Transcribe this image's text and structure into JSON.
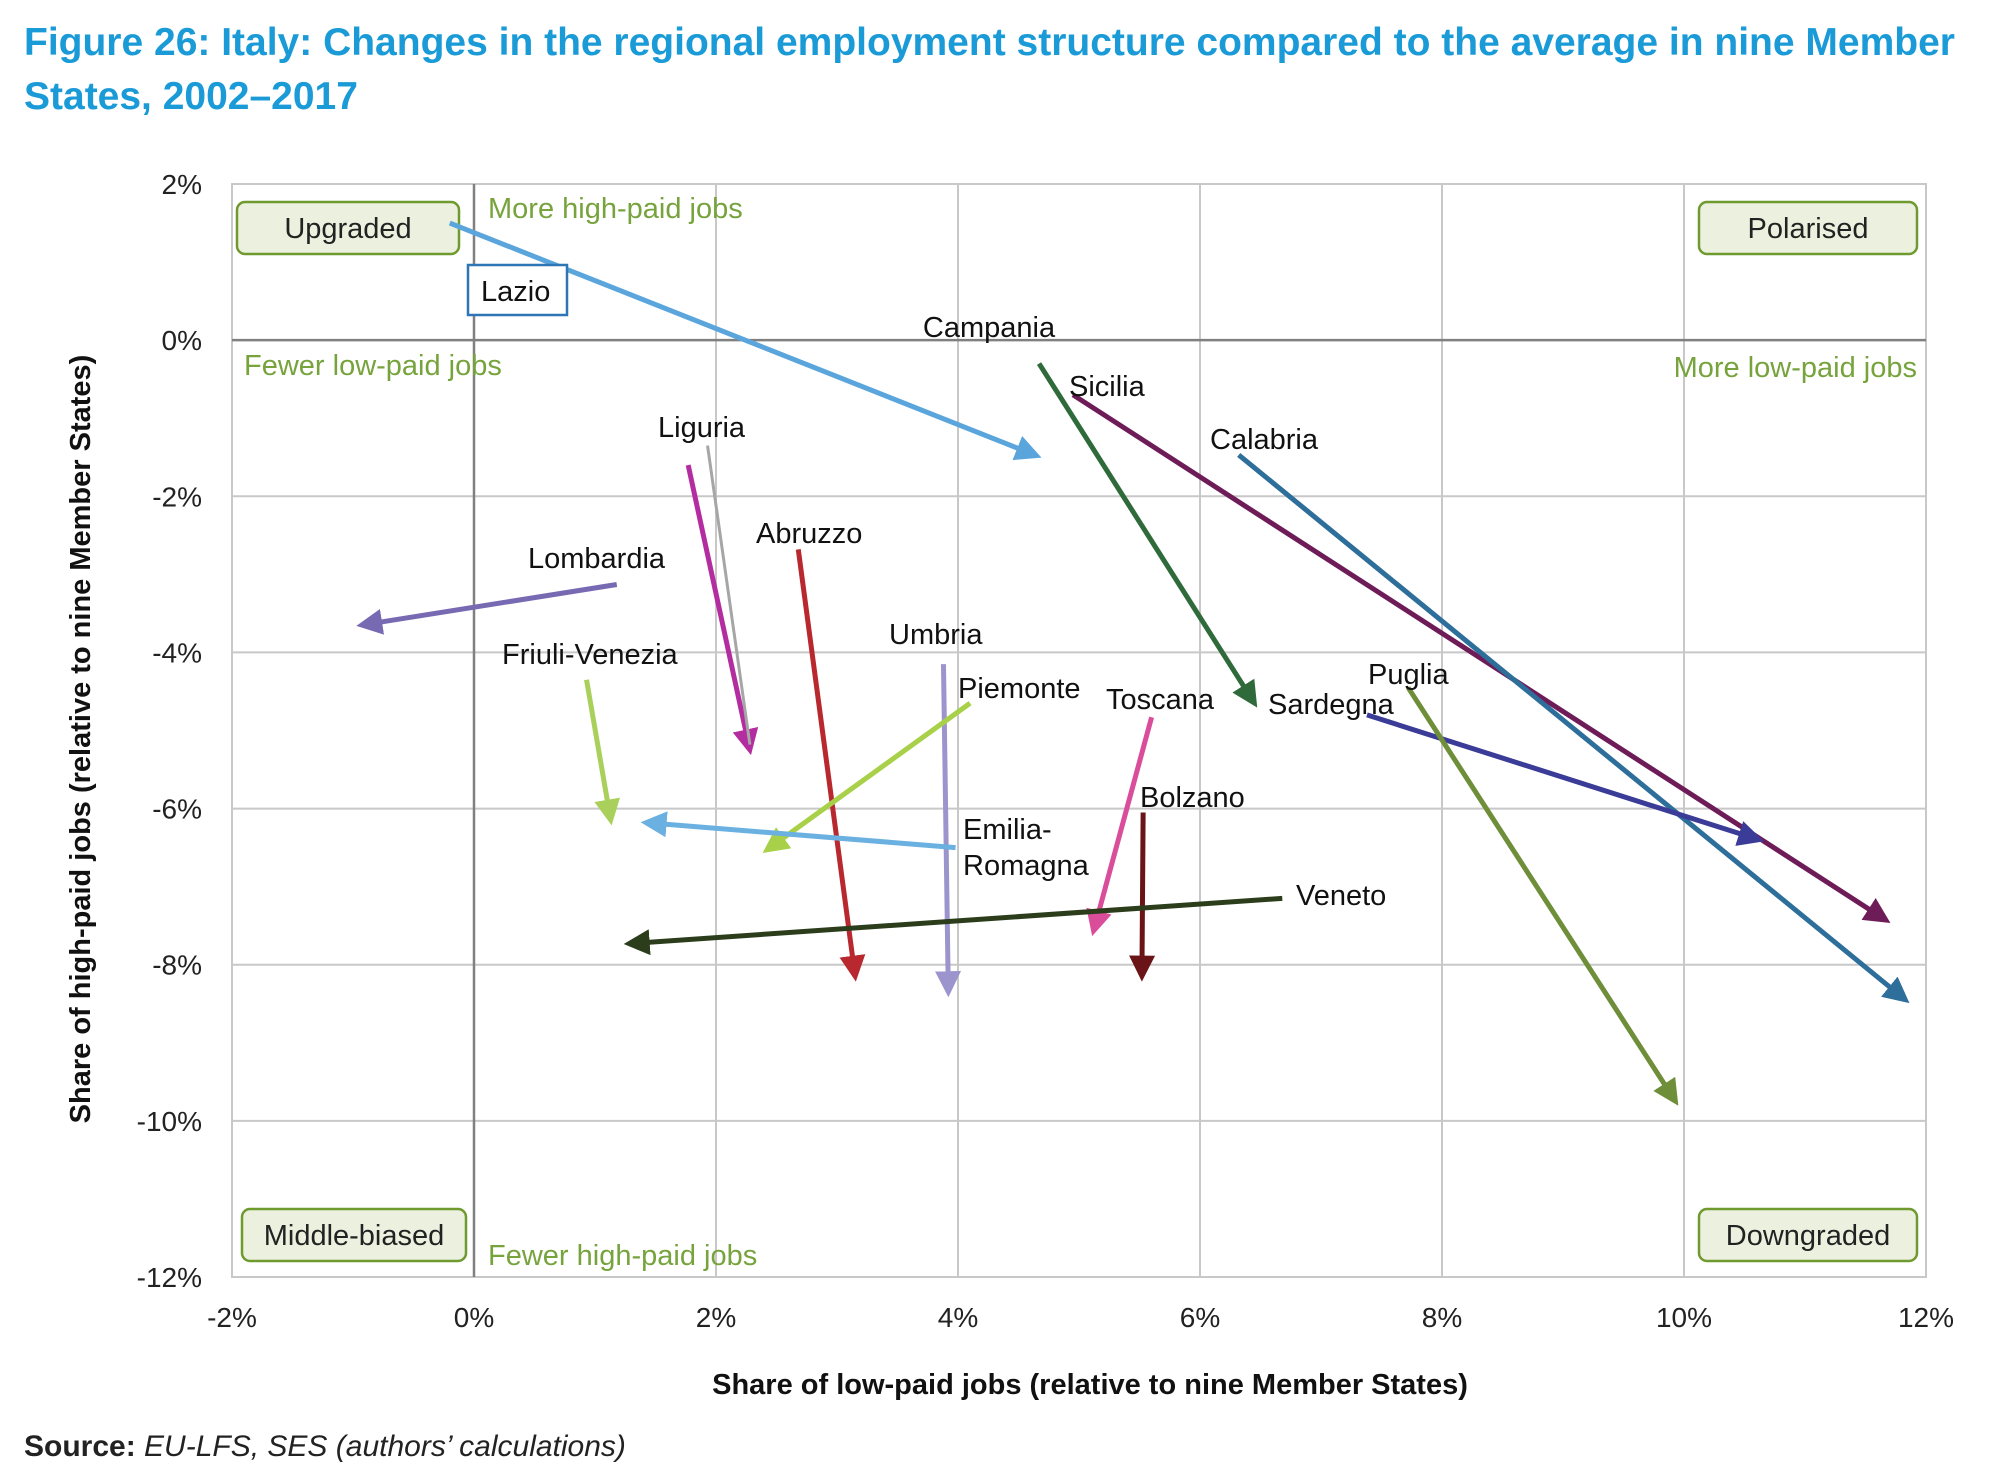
{
  "figure": {
    "title": "Figure 26: Italy: Changes in the regional employment structure compared to the average in nine Member States, 2002–2017",
    "source_label": "Source:",
    "source_text": "EU-LFS, SES (authors’ calculations)"
  },
  "chart_data": {
    "type": "scatter",
    "subtype": "arrow-vectors",
    "xlabel": "Share of low-paid jobs (relative to nine Member States)",
    "ylabel": "Share of high-paid jobs (relative to nine Member States)",
    "xlim": [
      -0.02,
      0.12
    ],
    "ylim": [
      -0.12,
      0.02
    ],
    "x_ticks": [
      -0.02,
      0,
      0.02,
      0.04,
      0.06,
      0.08,
      0.1,
      0.12
    ],
    "x_tick_labels": [
      "-2%",
      "0%",
      "2%",
      "4%",
      "6%",
      "8%",
      "10%",
      "12%"
    ],
    "y_ticks": [
      0.02,
      0,
      -0.02,
      -0.04,
      -0.06,
      -0.08,
      -0.1,
      -0.12
    ],
    "y_tick_labels": [
      "2%",
      "0%",
      "-2%",
      "-4%",
      "-6%",
      "-8%",
      "-10%",
      "-12%"
    ],
    "grid": true,
    "quadrant_boxes": [
      {
        "text": "Upgraded",
        "position": "top-left"
      },
      {
        "text": "Polarised",
        "position": "top-right"
      },
      {
        "text": "Middle-biased",
        "position": "bottom-left"
      },
      {
        "text": "Downgraded",
        "position": "bottom-right"
      }
    ],
    "axis_annotations": [
      {
        "text": "More high-paid jobs",
        "position": "top"
      },
      {
        "text": "Fewer low-paid jobs",
        "position": "left"
      },
      {
        "text": "More low-paid jobs",
        "position": "right"
      },
      {
        "text": "Fewer high-paid jobs",
        "position": "bottom"
      }
    ],
    "colors": {
      "title": "#1a9bd7",
      "annotation": "#77a33d",
      "box_fill": "#ebf1de",
      "box_border": "#6e9a30",
      "grid": "#c8c8c8",
      "axis": "#808080"
    },
    "series": [
      {
        "name": "Lazio",
        "x0": -0.002,
        "y0": 0.015,
        "x1": 0.0465,
        "y1": -0.0148,
        "color": "#5aa5dc",
        "label_boxed": true
      },
      {
        "name": "Campania",
        "x0": 0.0467,
        "y0": -0.003,
        "x1": 0.0645,
        "y1": -0.0465,
        "color": "#2f6b3a"
      },
      {
        "name": "Sicilia",
        "x0": 0.0495,
        "y0": -0.007,
        "x1": 0.1167,
        "y1": -0.0743,
        "color": "#6e1c58"
      },
      {
        "name": "Calabria",
        "x0": 0.0632,
        "y0": -0.0147,
        "x1": 0.1183,
        "y1": -0.0845,
        "color": "#2d6e9a"
      },
      {
        "name": "Liguria",
        "x0": 0.0177,
        "y0": -0.016,
        "x1": 0.0228,
        "y1": -0.0525,
        "color": "#b42da0"
      },
      {
        "name": "Liguria (grey)",
        "x0": 0.0193,
        "y0": -0.0135,
        "x1": 0.0228,
        "y1": -0.0518,
        "color": "#a6a6a6"
      },
      {
        "name": "Abruzzo",
        "x0": 0.0268,
        "y0": -0.0268,
        "x1": 0.0315,
        "y1": -0.0815,
        "color": "#b8282e"
      },
      {
        "name": "Lombardia",
        "x0": 0.0118,
        "y0": -0.0313,
        "x1": -0.0093,
        "y1": -0.0365,
        "color": "#7769b2"
      },
      {
        "name": "Umbria",
        "x0": 0.0388,
        "y0": -0.0415,
        "x1": 0.0392,
        "y1": -0.0835,
        "color": "#9c94cc"
      },
      {
        "name": "Friuli-Venezia",
        "x0": 0.0093,
        "y0": -0.0435,
        "x1": 0.0113,
        "y1": -0.0615,
        "color": "#a9d05a"
      },
      {
        "name": "Piemonte",
        "x0": 0.041,
        "y0": -0.0465,
        "x1": 0.0242,
        "y1": -0.0653,
        "color": "#a8d048"
      },
      {
        "name": "Toscana",
        "x0": 0.056,
        "y0": -0.0483,
        "x1": 0.0512,
        "y1": -0.0757,
        "color": "#d94d9b"
      },
      {
        "name": "Sardegna",
        "x0": 0.0738,
        "y0": -0.048,
        "x1": 0.1062,
        "y1": -0.064,
        "color": "#3b3b98"
      },
      {
        "name": "Puglia",
        "x0": 0.0772,
        "y0": -0.0445,
        "x1": 0.0993,
        "y1": -0.0975,
        "color": "#6e8e3a"
      },
      {
        "name": "Bolzano",
        "x0": 0.0553,
        "y0": -0.0605,
        "x1": 0.0552,
        "y1": -0.0815,
        "color": "#6b1418"
      },
      {
        "name": "Emilia-Romagna",
        "x0": 0.0398,
        "y0": -0.065,
        "x1": 0.0142,
        "y1": -0.0618,
        "color": "#6ab0e0"
      },
      {
        "name": "Veneto",
        "x0": 0.0668,
        "y0": -0.0715,
        "x1": 0.0128,
        "y1": -0.0773,
        "color": "#2c3d1c"
      }
    ],
    "point_labels": [
      {
        "text": "Lazio",
        "series": "Lazio"
      },
      {
        "text": "Campania",
        "series": "Campania"
      },
      {
        "text": "Sicilia",
        "series": "Sicilia"
      },
      {
        "text": "Calabria",
        "series": "Calabria"
      },
      {
        "text": "Liguria",
        "series": "Liguria"
      },
      {
        "text": "Abruzzo",
        "series": "Abruzzo"
      },
      {
        "text": "Lombardia",
        "series": "Lombardia"
      },
      {
        "text": "Umbria",
        "series": "Umbria"
      },
      {
        "text": "Friuli-Venezia",
        "series": "Friuli-Venezia"
      },
      {
        "text": "Piemonte",
        "series": "Piemonte"
      },
      {
        "text": "Toscana",
        "series": "Toscana"
      },
      {
        "text": "Sardegna",
        "series": "Sardegna"
      },
      {
        "text": "Puglia",
        "series": "Puglia"
      },
      {
        "text": "Bolzano",
        "series": "Bolzano"
      },
      {
        "text": "Emilia-",
        "series": "Emilia-Romagna"
      },
      {
        "text": "Romagna",
        "series": "Emilia-Romagna"
      },
      {
        "text": "Veneto",
        "series": "Veneto"
      }
    ]
  }
}
